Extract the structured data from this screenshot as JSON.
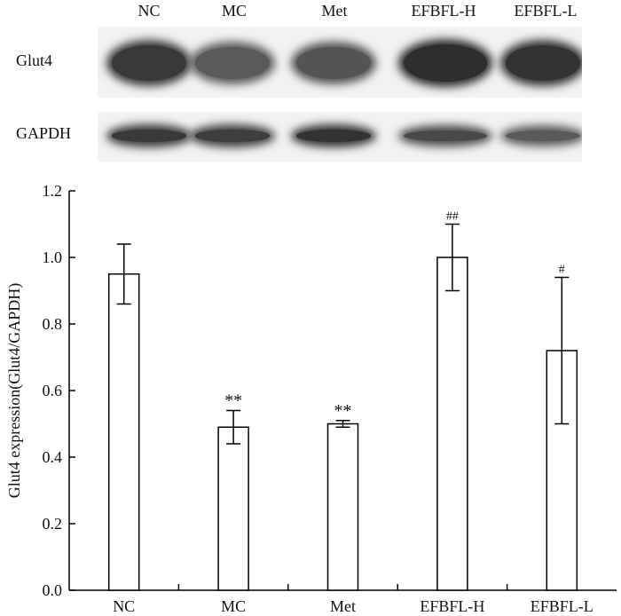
{
  "blot": {
    "lane_labels": [
      "NC",
      "MC",
      "Met",
      "EFBFL-H",
      "EFBFL-L"
    ],
    "rows": [
      {
        "label": "Glut4",
        "intensity": [
          0.85,
          0.55,
          0.6,
          0.95,
          0.9
        ]
      },
      {
        "label": "GAPDH",
        "intensity": [
          0.85,
          0.8,
          0.9,
          0.7,
          0.55
        ]
      }
    ]
  },
  "chart_data": {
    "type": "bar",
    "categories": [
      "NC",
      "MC",
      "Met",
      "EFBFL-H",
      "EFBFL-L"
    ],
    "values": [
      0.95,
      0.49,
      0.5,
      1.0,
      0.72
    ],
    "errors": [
      0.09,
      0.05,
      0.01,
      0.1,
      0.22
    ],
    "annotations": [
      "",
      "**",
      "**",
      "##",
      "#"
    ],
    "xlabel": "",
    "ylabel": "Glut4 expression(Glut4/GAPDH)",
    "ylim": [
      0,
      1.2
    ],
    "yticks": [
      "0.0",
      "0.2",
      "0.4",
      "0.6",
      "0.8",
      "1.0",
      "1.2"
    ],
    "ytick_values": [
      0,
      0.2,
      0.4,
      0.6,
      0.8,
      1.0,
      1.2
    ],
    "bar_fill": "#ffffff",
    "bar_stroke": "#000000"
  }
}
